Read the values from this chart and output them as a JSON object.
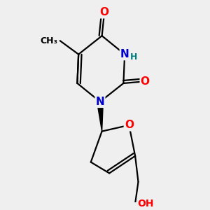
{
  "bg_color": "#efefef",
  "atom_colors": {
    "O": "#ff0000",
    "N": "#0000cc",
    "H": "#008080",
    "C": "#000000"
  },
  "bond_color": "#000000",
  "bond_width": 1.6,
  "font_size_atoms": 10,
  "title": ""
}
